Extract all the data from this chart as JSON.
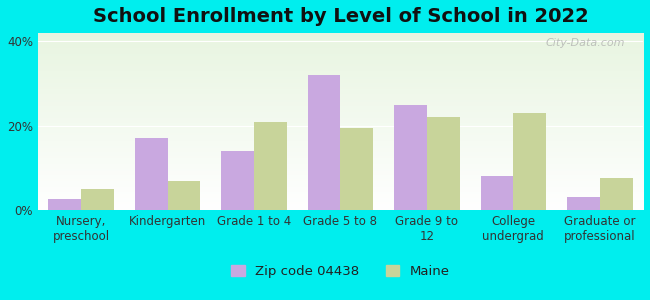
{
  "title": "School Enrollment by Level of School in 2022",
  "categories": [
    "Nursery,\npreschool",
    "Kindergarten",
    "Grade 1 to 4",
    "Grade 5 to 8",
    "Grade 9 to\n12",
    "College\nundergrad",
    "Graduate or\nprofessional"
  ],
  "zip_values": [
    2.5,
    17.0,
    14.0,
    32.0,
    25.0,
    8.0,
    3.0
  ],
  "maine_values": [
    5.0,
    7.0,
    21.0,
    19.5,
    22.0,
    23.0,
    7.5
  ],
  "zip_color": "#c9a8e0",
  "maine_color": "#c8d49a",
  "background_color": "#00eeee",
  "ylim": [
    0,
    42
  ],
  "yticks": [
    0,
    20,
    40
  ],
  "ytick_labels": [
    "0%",
    "20%",
    "40%"
  ],
  "legend_zip_label": "Zip code 04438",
  "legend_maine_label": "Maine",
  "title_fontsize": 14,
  "tick_fontsize": 8.5,
  "legend_fontsize": 9.5,
  "bar_width": 0.38,
  "watermark_text": "City-Data.com"
}
